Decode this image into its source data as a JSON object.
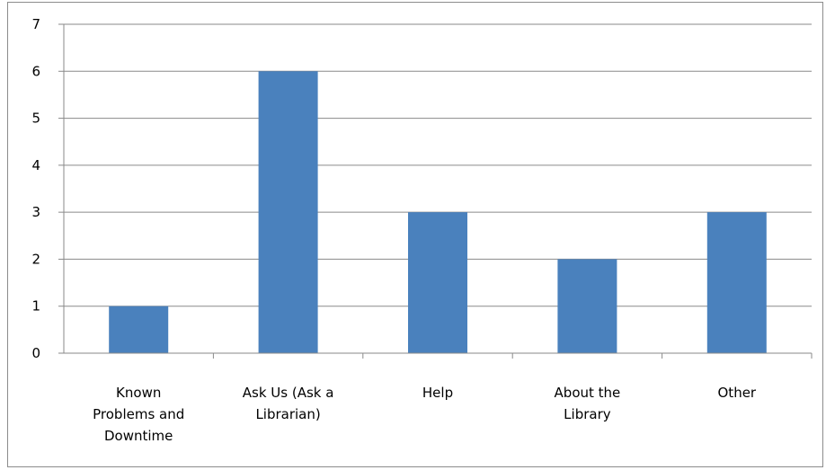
{
  "chart_data": {
    "type": "bar",
    "categories": [
      [
        "Known",
        "Problems and",
        "Downtime"
      ],
      [
        "Ask Us (Ask a",
        "Librarian)"
      ],
      [
        "Help"
      ],
      [
        "About the",
        "Library"
      ],
      [
        "Other"
      ]
    ],
    "values": [
      1,
      6,
      3,
      2,
      3
    ],
    "ylim": [
      0,
      7
    ],
    "yticks": [
      "0",
      "1",
      "2",
      "3",
      "4",
      "5",
      "6",
      "7"
    ],
    "grid": true,
    "legend": "none",
    "colors": {
      "bar": "#4a81bd",
      "grid": "#8a8a8a",
      "axis": "#8a8a8a"
    }
  }
}
